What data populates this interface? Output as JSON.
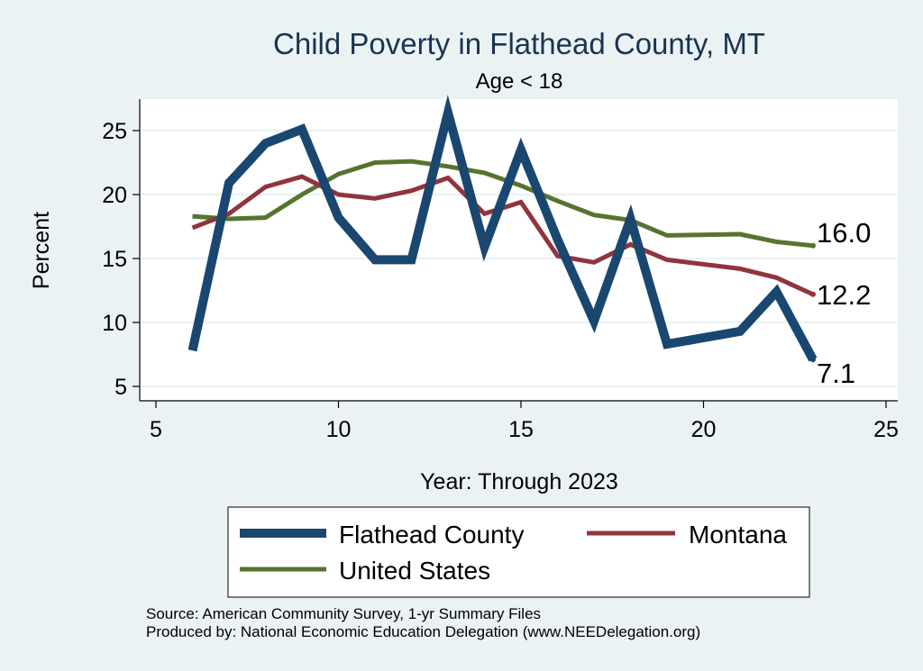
{
  "chart_data": {
    "type": "line",
    "title": "Child Poverty in Flathead County, MT",
    "subtitle": "Age < 18",
    "xlabel": "Year: Through 2023",
    "ylabel": "Percent",
    "xlim": [
      5,
      25
    ],
    "ylim": [
      4,
      27
    ],
    "x_ticks": [
      5,
      10,
      15,
      20,
      25
    ],
    "y_ticks": [
      5,
      10,
      15,
      20,
      25
    ],
    "grid": true,
    "series": [
      {
        "name": "Flathead County",
        "color": "#1a476f",
        "x": [
          6,
          7,
          8,
          9,
          10,
          11,
          12,
          13,
          14,
          15,
          16,
          17,
          18,
          19,
          21,
          22,
          23
        ],
        "values": [
          7.8,
          20.9,
          24.0,
          25.1,
          18.2,
          14.9,
          14.9,
          26.4,
          15.9,
          23.5,
          16.5,
          10.1,
          18.1,
          8.3,
          9.3,
          12.4,
          7.1
        ],
        "end_label": "7.1"
      },
      {
        "name": "Montana",
        "color": "#90353b",
        "x": [
          6,
          7,
          8,
          9,
          10,
          11,
          12,
          13,
          14,
          15,
          16,
          17,
          18,
          19,
          21,
          22,
          23
        ],
        "values": [
          17.4,
          18.5,
          20.6,
          21.4,
          20.0,
          19.7,
          20.3,
          21.3,
          18.5,
          19.4,
          15.2,
          14.7,
          16.1,
          14.9,
          14.2,
          13.5,
          12.2
        ],
        "end_label": "12.2"
      },
      {
        "name": "United States",
        "color": "#55752f",
        "x": [
          6,
          7,
          8,
          9,
          10,
          11,
          12,
          13,
          14,
          15,
          16,
          17,
          18,
          19,
          21,
          22,
          23
        ],
        "values": [
          18.3,
          18.1,
          18.2,
          20.0,
          21.6,
          22.5,
          22.6,
          22.2,
          21.7,
          20.7,
          19.5,
          18.4,
          18.0,
          16.8,
          16.9,
          16.3,
          16.0
        ],
        "end_label": "16.0"
      }
    ],
    "legend": [
      "Flathead County",
      "Montana",
      "United States"
    ],
    "notes": [
      "Source: American Community Survey, 1-yr Summary Files",
      "Produced by: National Economic Education Delegation (www.NEEDelegation.org)"
    ]
  },
  "colors": {
    "background": "#eaf2f3",
    "plot_background": "#ffffff",
    "grid": "#eaf2f3"
  }
}
